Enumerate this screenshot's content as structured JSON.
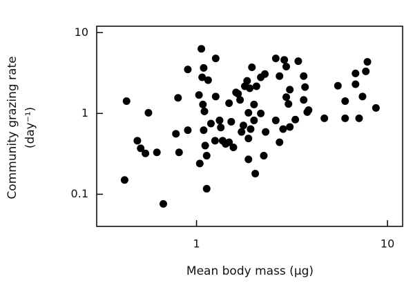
{
  "chart_data": {
    "type": "scatter",
    "xlabel": "Mean body mass (μg)",
    "ylabel": [
      "Community grazing rate",
      "(day⁻¹)"
    ],
    "xscale": "log",
    "yscale": "log",
    "xlim": [
      0.3,
      12
    ],
    "ylim": [
      0.04,
      12
    ],
    "xticks": [
      1,
      10
    ],
    "yticks": [
      0.1,
      1,
      10
    ],
    "color": "#000000",
    "x": [
      0.42,
      0.43,
      0.49,
      0.51,
      0.54,
      0.56,
      0.62,
      0.67,
      0.78,
      0.8,
      0.81,
      0.9,
      0.9,
      1.06,
      1.03,
      1.07,
      1.09,
      1.04,
      1.08,
      1.1,
      1.09,
      1.11,
      1.13,
      1.13,
      1.15,
      1.19,
      1.26,
      1.26,
      1.25,
      1.32,
      1.34,
      1.37,
      1.42,
      1.48,
      1.48,
      1.52,
      1.56,
      1.61,
      1.65,
      1.69,
      1.72,
      1.76,
      1.84,
      1.87,
      1.79,
      1.87,
      1.9,
      1.95,
      1.87,
      1.92,
      2.0,
      2.0,
      2.03,
      2.06,
      2.17,
      2.17,
      2.25,
      2.3,
      2.28,
      2.6,
      2.6,
      2.72,
      2.72,
      2.84,
      2.88,
      2.95,
      2.95,
      3.03,
      3.08,
      3.08,
      3.29,
      3.41,
      3.64,
      3.64,
      3.7,
      3.8,
      3.86,
      4.67,
      5.5,
      6.0,
      6.0,
      6.8,
      6.8,
      7.1,
      7.4,
      7.7,
      7.85,
      8.7
    ],
    "y": [
      0.15,
      1.42,
      0.46,
      0.37,
      0.32,
      1.02,
      0.33,
      0.076,
      0.56,
      1.56,
      0.33,
      0.62,
      3.5,
      6.3,
      1.69,
      2.8,
      3.66,
      0.24,
      1.29,
      1.06,
      0.62,
      0.4,
      0.3,
      0.117,
      2.58,
      0.75,
      4.8,
      1.62,
      0.46,
      0.82,
      0.67,
      0.46,
      0.42,
      0.44,
      1.34,
      0.79,
      0.38,
      1.82,
      1.75,
      1.47,
      0.59,
      0.71,
      2.53,
      1.02,
      2.17,
      0.49,
      2.05,
      3.72,
      0.27,
      0.64,
      1.29,
      0.82,
      0.18,
      2.17,
      2.8,
      1.0,
      0.3,
      0.59,
      3.07,
      4.8,
      0.82,
      2.9,
      0.44,
      0.64,
      4.6,
      3.8,
      1.59,
      1.31,
      1.97,
      0.68,
      0.84,
      4.43,
      2.9,
      1.47,
      2.12,
      1.04,
      1.1,
      0.87,
      2.2,
      1.42,
      0.87,
      2.3,
      3.13,
      0.87,
      1.62,
      3.32,
      4.35,
      1.17
    ]
  }
}
